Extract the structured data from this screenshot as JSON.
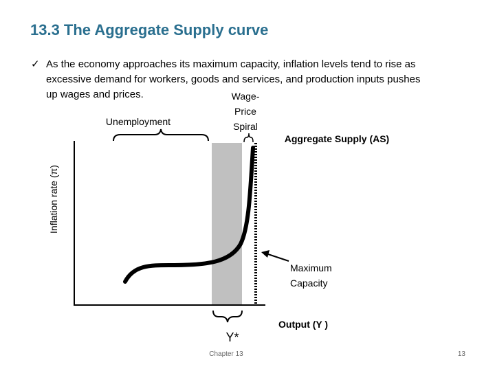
{
  "header": {
    "title": "13.3 The Aggregate Supply curve"
  },
  "bullet": {
    "lines": [
      "As the economy approaches its maximum capacity, inflation levels tend to rise as",
      "excessive demand for workers, goods and services, and production inputs pushes",
      "up wages and prices."
    ]
  },
  "diagram": {
    "spiral_label": [
      "Wage-",
      "Price",
      "Spiral"
    ],
    "unemployment_label": "Unemployment",
    "curve_label": "Aggregate Supply (AS)",
    "y_axis_label": "Inflation rate (π)",
    "capacity_label": [
      "Maximum",
      "Capacity"
    ],
    "x_axis_label": "Output (Y )",
    "potential_label": "Y*"
  },
  "footer": {
    "chapter": "Chapter 13",
    "page": "13"
  }
}
